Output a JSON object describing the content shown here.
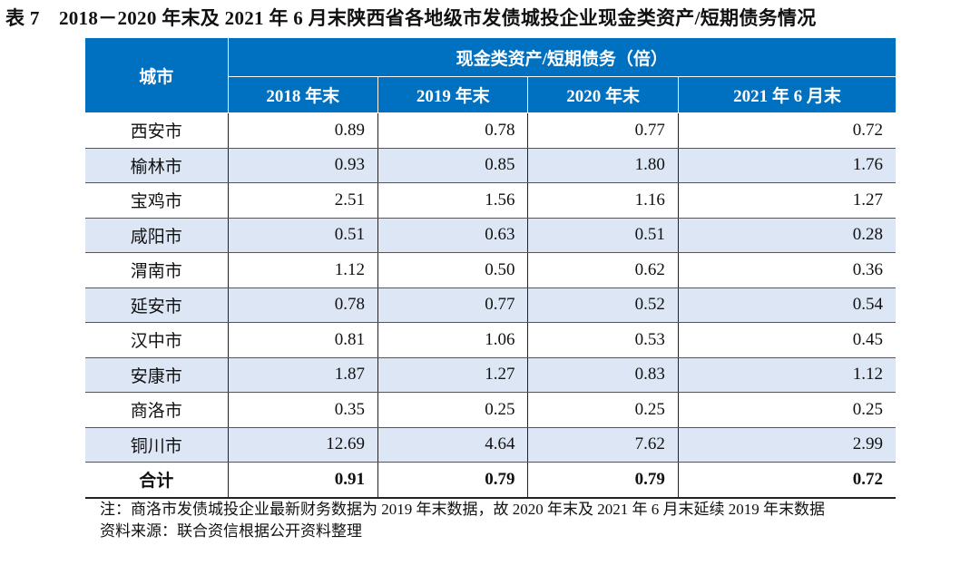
{
  "title": "表 7　2018－2020 年末及 2021 年 6 月末陕西省各地级市发债城投企业现金类资产/短期债务情况",
  "table": {
    "city_header": "城市",
    "group_header": "现金类资产/短期债务（倍）",
    "columns": [
      "2018 年末",
      "2019 年末",
      "2020 年末",
      "2021 年 6 月末"
    ],
    "rows": [
      {
        "city": "西安市",
        "values": [
          "0.89",
          "0.78",
          "0.77",
          "0.72"
        ]
      },
      {
        "city": "榆林市",
        "values": [
          "0.93",
          "0.85",
          "1.80",
          "1.76"
        ]
      },
      {
        "city": "宝鸡市",
        "values": [
          "2.51",
          "1.56",
          "1.16",
          "1.27"
        ]
      },
      {
        "city": "咸阳市",
        "values": [
          "0.51",
          "0.63",
          "0.51",
          "0.28"
        ]
      },
      {
        "city": "渭南市",
        "values": [
          "1.12",
          "0.50",
          "0.62",
          "0.36"
        ]
      },
      {
        "city": "延安市",
        "values": [
          "0.78",
          "0.77",
          "0.52",
          "0.54"
        ]
      },
      {
        "city": "汉中市",
        "values": [
          "0.81",
          "1.06",
          "0.53",
          "0.45"
        ]
      },
      {
        "city": "安康市",
        "values": [
          "1.87",
          "1.27",
          "0.83",
          "1.12"
        ]
      },
      {
        "city": "商洛市",
        "values": [
          "0.35",
          "0.25",
          "0.25",
          "0.25"
        ]
      },
      {
        "city": "铜川市",
        "values": [
          "12.69",
          "4.64",
          "7.62",
          "2.99"
        ]
      }
    ],
    "total": {
      "city": "合计",
      "values": [
        "0.91",
        "0.79",
        "0.79",
        "0.72"
      ]
    }
  },
  "notes": {
    "note": "注：商洛市发债城投企业最新财务数据为 2019 年末数据，故 2020 年末及 2021 年 6 月末延续 2019 年末数据",
    "source": "资料来源：联合资信根据公开资料整理"
  },
  "colors": {
    "header": "#0070c0",
    "alt_row": "#dce6f4"
  }
}
